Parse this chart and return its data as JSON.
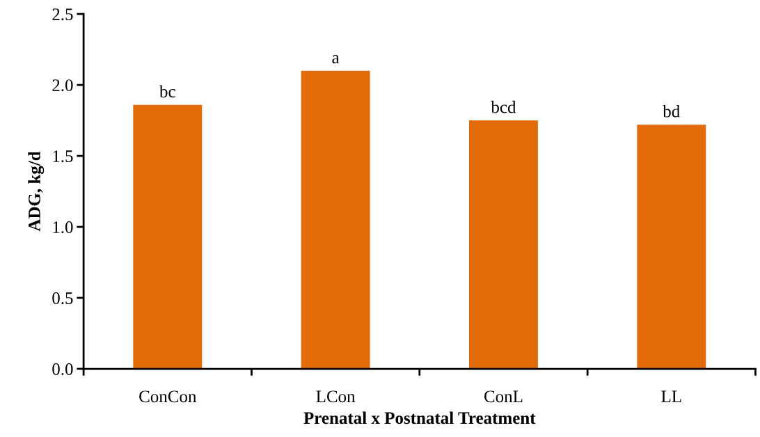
{
  "chart_data": {
    "type": "bar",
    "xlabel": "Prenatal x Postnatal Treatment",
    "ylabel": "ADG, kg/d",
    "categories": [
      "ConCon",
      "LCon",
      "ConL",
      "LL"
    ],
    "values": [
      1.86,
      2.1,
      1.75,
      1.72
    ],
    "color": "#e36c0a",
    "ylim": [
      0,
      2.5
    ],
    "yticks": [
      {
        "value": 0,
        "label": "0.0"
      },
      {
        "value": 0.5,
        "label": "0.5"
      },
      {
        "value": 1,
        "label": "1.0"
      },
      {
        "value": 1.5,
        "label": "1.5"
      },
      {
        "value": 2,
        "label": "2.0"
      },
      {
        "value": 2.5,
        "label": "2.5"
      }
    ],
    "annotations": [
      {
        "text": "bc",
        "x": "ConCon",
        "y": 1.86
      },
      {
        "text": "a",
        "x": "LCon",
        "y": 2.1
      },
      {
        "text": "bcd",
        "x": "ConL",
        "y": 1.75
      },
      {
        "text": "bd",
        "x": "LL",
        "y": 1.72
      }
    ],
    "grid": false
  }
}
